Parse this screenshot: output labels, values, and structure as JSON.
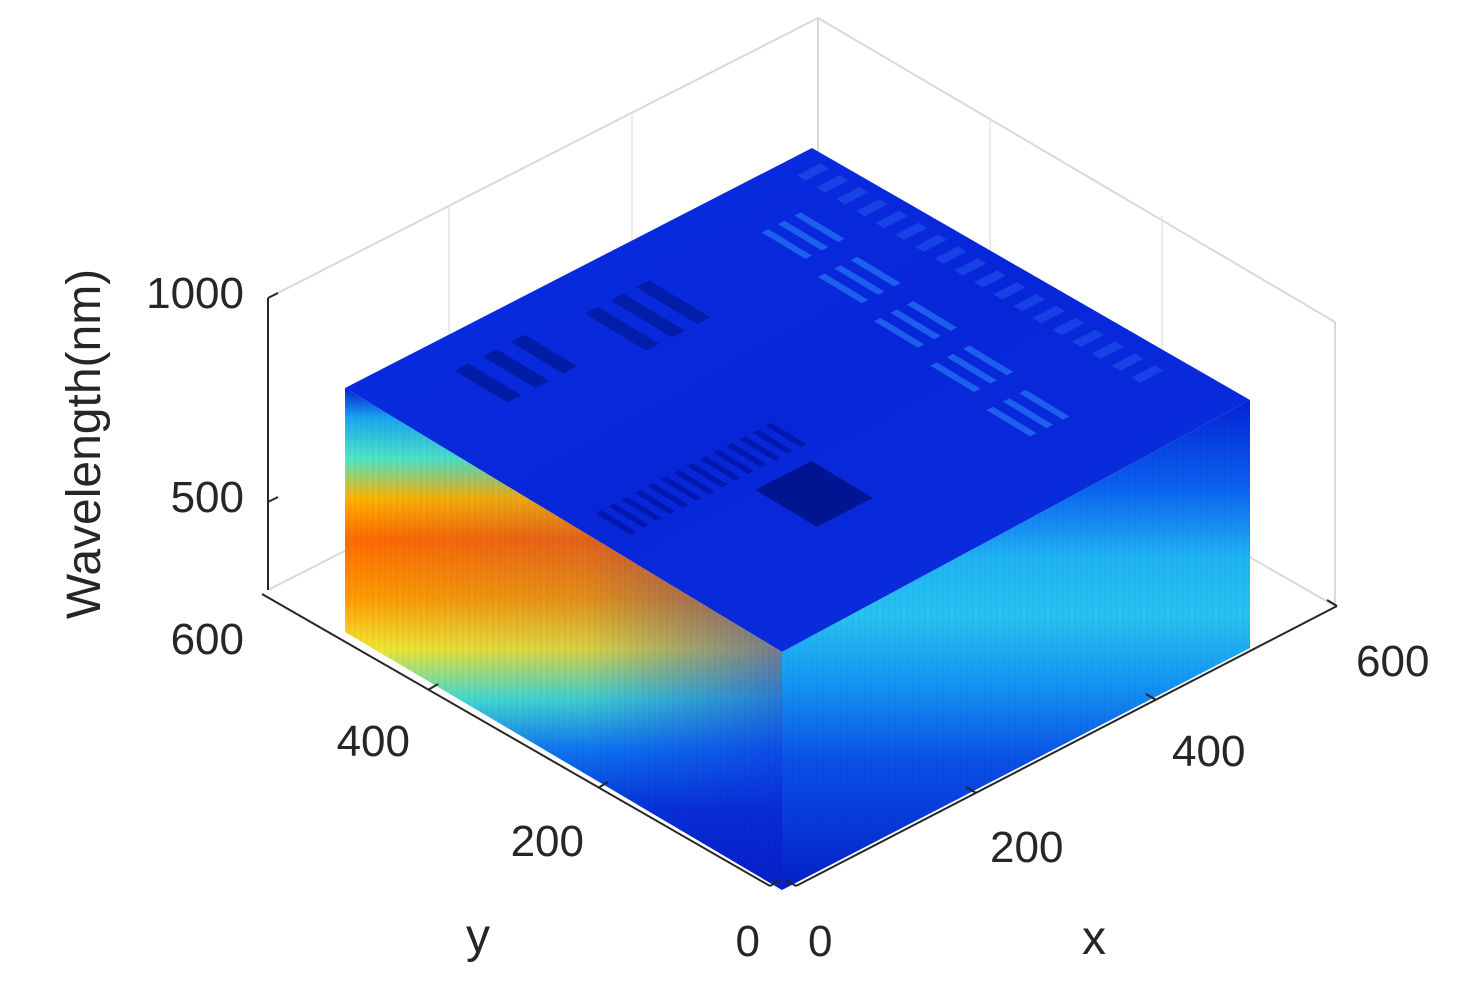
{
  "chart_data": {
    "type": "heatmap",
    "view": "3d-hyperspectral-cube",
    "xlabel": "x",
    "ylabel": "y",
    "zlabel": "Wavelength(nm)",
    "x_ticks": [
      "0",
      "200",
      "400",
      "600"
    ],
    "y_ticks": [
      "0",
      "200",
      "400"
    ],
    "z_ticks": [
      "1000",
      "500",
      "600"
    ],
    "xlim": [
      0,
      600
    ],
    "ylim": [
      0,
      512
    ],
    "zlim": [
      400,
      1000
    ],
    "colormap": "jet",
    "grid": true,
    "colors": {
      "low": "#00008f",
      "mid": "#00ffff",
      "high": "#ff8000",
      "background": "#ffffff"
    },
    "faces": [
      {
        "name": "top",
        "description_values": {
          "base_intensity": 0.08
        }
      },
      {
        "name": "left-side",
        "band_profile": [
          0.15,
          0.35,
          0.6,
          0.8,
          0.78,
          0.6,
          0.35,
          0.15,
          0.08,
          0.06
        ]
      },
      {
        "name": "right-side",
        "band_profile": [
          0.1,
          0.15,
          0.25,
          0.35,
          0.3,
          0.22,
          0.15,
          0.1,
          0.08,
          0.06
        ]
      }
    ]
  }
}
